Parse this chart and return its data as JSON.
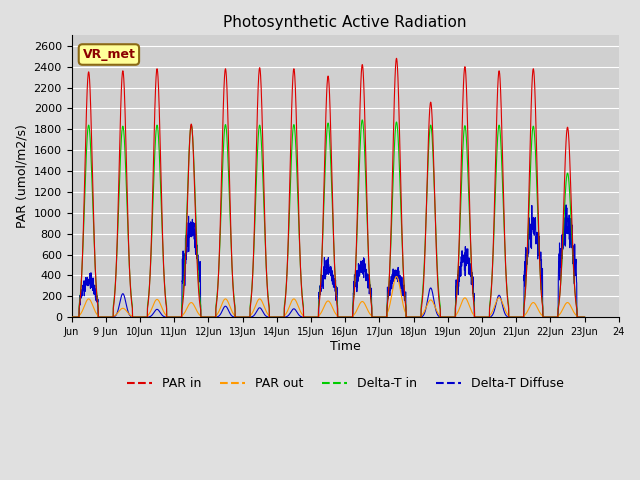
{
  "title": "Photosynthetic Active Radiation",
  "ylabel": "PAR (umol/m2/s)",
  "xlabel": "Time",
  "ylim": [
    0,
    2700
  ],
  "yticks": [
    0,
    200,
    400,
    600,
    800,
    1000,
    1200,
    1400,
    1600,
    1800,
    2000,
    2200,
    2400,
    2600
  ],
  "site_label": "VR_met",
  "colors": {
    "PAR_in": "#dd0000",
    "PAR_out": "#ff9900",
    "DeltaT_in": "#00cc00",
    "DeltaT_diffuse": "#0000cc"
  },
  "legend_labels": [
    "PAR in",
    "PAR out",
    "Delta-T in",
    "Delta-T Diffuse"
  ],
  "bg_color": "#e0e0e0",
  "plot_bg": "#d0d0d0",
  "grid_color": "#ffffff",
  "days": [
    9,
    10,
    11,
    12,
    13,
    14,
    15,
    16,
    17,
    18,
    19,
    20,
    21,
    22,
    23
  ],
  "par_in_peaks": [
    2350,
    2360,
    2380,
    1850,
    2380,
    2390,
    2380,
    2310,
    2420,
    2480,
    2060,
    2400,
    2360,
    2380,
    1820
  ],
  "par_out_peaks": [
    175,
    85,
    170,
    140,
    175,
    175,
    175,
    155,
    150,
    390,
    165,
    185,
    185,
    140,
    140
  ],
  "dt_in_peaks": [
    1840,
    1830,
    1840,
    1840,
    1845,
    1840,
    1845,
    1860,
    1890,
    1870,
    1840,
    1835,
    1840,
    1830,
    1380
  ],
  "dt_diff_peaks": [
    355,
    225,
    75,
    840,
    105,
    90,
    80,
    480,
    490,
    400,
    280,
    560,
    210,
    870,
    870
  ],
  "pts_per_day": 200
}
